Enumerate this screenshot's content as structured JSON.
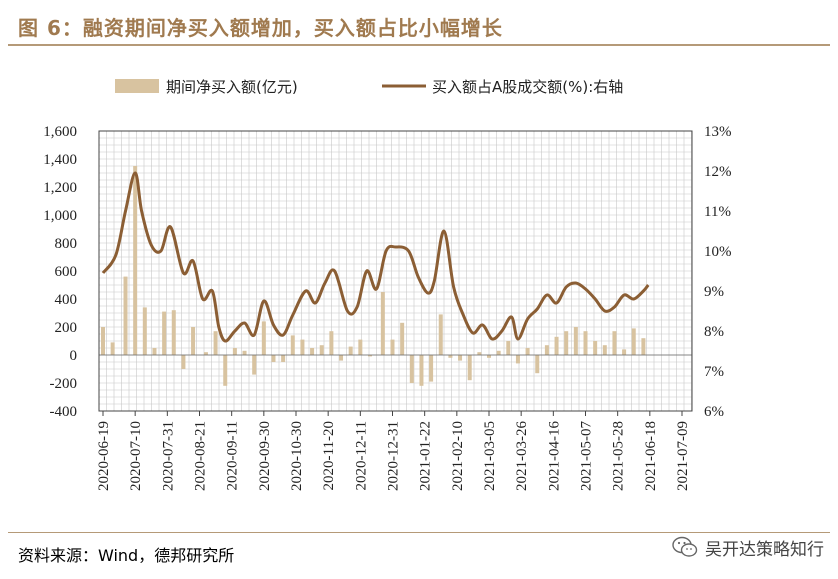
{
  "header": {
    "title": "图 6：融资期间净买入额增加，买入额占比小幅增长"
  },
  "footer": {
    "source": "资料来源：Wind，德邦研究所",
    "brand": "吴开达策略知行"
  },
  "colors": {
    "title": "#a07a4f",
    "bar": "#d8c3a0",
    "line": "#8b5e34",
    "grid": "#c8c8c8"
  },
  "chart_data": {
    "type": "bar+line",
    "legend": {
      "bar_label": "期间净买入额(亿元)",
      "line_label": "买入额占A股成交额(%):右轴",
      "placement": "top"
    },
    "categories": [
      "2020-06-19",
      "2020-07-10",
      "2020-07-31",
      "2020-08-21",
      "2020-09-11",
      "2020-09-30",
      "2020-10-30",
      "2020-11-20",
      "2020-12-11",
      "2020-12-31",
      "2021-01-22",
      "2021-02-10",
      "2021-03-05",
      "2021-03-26",
      "2021-04-16",
      "2021-05-07",
      "2021-05-28",
      "2021-06-18",
      "2021-07-09"
    ],
    "y_left": {
      "min": -400,
      "max": 1600,
      "step": 200,
      "ticks": [
        "-400",
        "-200",
        "0",
        "200",
        "400",
        "600",
        "800",
        "1,000",
        "1,200",
        "1,400",
        "1,600"
      ]
    },
    "y_right": {
      "min": 6,
      "max": 13,
      "step": 1,
      "ticks": [
        "6%",
        "7%",
        "8%",
        "9%",
        "10%",
        "11%",
        "12%",
        "13%"
      ]
    },
    "grid": true,
    "bars": [
      {
        "x": 0.0,
        "v": 200
      },
      {
        "x": 0.3,
        "v": 90
      },
      {
        "x": 0.7,
        "v": 560
      },
      {
        "x": 1.0,
        "v": 1350
      },
      {
        "x": 1.3,
        "v": 340
      },
      {
        "x": 1.6,
        "v": 50
      },
      {
        "x": 1.9,
        "v": 310
      },
      {
        "x": 2.2,
        "v": 320
      },
      {
        "x": 2.5,
        "v": -100
      },
      {
        "x": 2.8,
        "v": 200
      },
      {
        "x": 3.2,
        "v": 20
      },
      {
        "x": 3.5,
        "v": 170
      },
      {
        "x": 3.8,
        "v": -220
      },
      {
        "x": 4.1,
        "v": 50
      },
      {
        "x": 4.4,
        "v": 30
      },
      {
        "x": 4.7,
        "v": -140
      },
      {
        "x": 5.0,
        "v": 240
      },
      {
        "x": 5.3,
        "v": -50
      },
      {
        "x": 5.6,
        "v": -50
      },
      {
        "x": 5.9,
        "v": 140
      },
      {
        "x": 6.2,
        "v": 110
      },
      {
        "x": 6.5,
        "v": 50
      },
      {
        "x": 6.8,
        "v": 70
      },
      {
        "x": 7.1,
        "v": 170
      },
      {
        "x": 7.4,
        "v": -40
      },
      {
        "x": 7.7,
        "v": 60
      },
      {
        "x": 8.0,
        "v": 110
      },
      {
        "x": 8.3,
        "v": -10
      },
      {
        "x": 8.7,
        "v": 450
      },
      {
        "x": 9.0,
        "v": 110
      },
      {
        "x": 9.3,
        "v": 230
      },
      {
        "x": 9.6,
        "v": -200
      },
      {
        "x": 9.9,
        "v": -220
      },
      {
        "x": 10.2,
        "v": -190
      },
      {
        "x": 10.5,
        "v": 290
      },
      {
        "x": 10.8,
        "v": -20
      },
      {
        "x": 11.1,
        "v": -40
      },
      {
        "x": 11.4,
        "v": -180
      },
      {
        "x": 11.7,
        "v": 20
      },
      {
        "x": 12.0,
        "v": -20
      },
      {
        "x": 12.3,
        "v": 30
      },
      {
        "x": 12.6,
        "v": 100
      },
      {
        "x": 12.9,
        "v": -60
      },
      {
        "x": 13.2,
        "v": 50
      },
      {
        "x": 13.5,
        "v": -130
      },
      {
        "x": 13.8,
        "v": 70
      },
      {
        "x": 14.1,
        "v": 130
      },
      {
        "x": 14.4,
        "v": 170
      },
      {
        "x": 14.7,
        "v": 200
      },
      {
        "x": 15.0,
        "v": 170
      },
      {
        "x": 15.3,
        "v": 100
      },
      {
        "x": 15.6,
        "v": 70
      },
      {
        "x": 15.9,
        "v": 170
      },
      {
        "x": 16.2,
        "v": 40
      },
      {
        "x": 16.5,
        "v": 190
      },
      {
        "x": 16.8,
        "v": 120
      }
    ],
    "line": [
      {
        "x": 0.0,
        "y": 9.45
      },
      {
        "x": 0.4,
        "y": 9.9
      },
      {
        "x": 0.7,
        "y": 11.0
      },
      {
        "x": 1.0,
        "y": 11.95
      },
      {
        "x": 1.2,
        "y": 11.0
      },
      {
        "x": 1.5,
        "y": 10.15
      },
      {
        "x": 1.8,
        "y": 10.0
      },
      {
        "x": 2.1,
        "y": 10.6
      },
      {
        "x": 2.5,
        "y": 9.45
      },
      {
        "x": 2.8,
        "y": 9.75
      },
      {
        "x": 3.1,
        "y": 8.8
      },
      {
        "x": 3.4,
        "y": 9.0
      },
      {
        "x": 3.6,
        "y": 8.1
      },
      {
        "x": 3.8,
        "y": 7.75
      },
      {
        "x": 4.1,
        "y": 8.0
      },
      {
        "x": 4.4,
        "y": 8.2
      },
      {
        "x": 4.7,
        "y": 7.9
      },
      {
        "x": 5.0,
        "y": 8.75
      },
      {
        "x": 5.3,
        "y": 8.15
      },
      {
        "x": 5.6,
        "y": 7.9
      },
      {
        "x": 5.9,
        "y": 8.4
      },
      {
        "x": 6.3,
        "y": 9.0
      },
      {
        "x": 6.6,
        "y": 8.7
      },
      {
        "x": 6.9,
        "y": 9.2
      },
      {
        "x": 7.2,
        "y": 9.5
      },
      {
        "x": 7.6,
        "y": 8.5
      },
      {
        "x": 7.9,
        "y": 8.6
      },
      {
        "x": 8.2,
        "y": 9.5
      },
      {
        "x": 8.5,
        "y": 9.05
      },
      {
        "x": 8.8,
        "y": 10.0
      },
      {
        "x": 9.1,
        "y": 10.1
      },
      {
        "x": 9.5,
        "y": 10.0
      },
      {
        "x": 9.8,
        "y": 9.35
      },
      {
        "x": 10.1,
        "y": 8.95
      },
      {
        "x": 10.3,
        "y": 9.25
      },
      {
        "x": 10.6,
        "y": 10.5
      },
      {
        "x": 10.9,
        "y": 9.1
      },
      {
        "x": 11.2,
        "y": 8.4
      },
      {
        "x": 11.5,
        "y": 7.95
      },
      {
        "x": 11.8,
        "y": 8.15
      },
      {
        "x": 12.1,
        "y": 7.8
      },
      {
        "x": 12.4,
        "y": 8.0
      },
      {
        "x": 12.7,
        "y": 8.35
      },
      {
        "x": 12.9,
        "y": 7.8
      },
      {
        "x": 13.2,
        "y": 8.3
      },
      {
        "x": 13.5,
        "y": 8.55
      },
      {
        "x": 13.8,
        "y": 8.9
      },
      {
        "x": 14.1,
        "y": 8.7
      },
      {
        "x": 14.4,
        "y": 9.1
      },
      {
        "x": 14.7,
        "y": 9.2
      },
      {
        "x": 15.0,
        "y": 9.05
      },
      {
        "x": 15.3,
        "y": 8.8
      },
      {
        "x": 15.6,
        "y": 8.5
      },
      {
        "x": 15.9,
        "y": 8.6
      },
      {
        "x": 16.2,
        "y": 8.9
      },
      {
        "x": 16.5,
        "y": 8.8
      },
      {
        "x": 16.8,
        "y": 9.0
      },
      {
        "x": 16.95,
        "y": 9.15
      }
    ]
  }
}
